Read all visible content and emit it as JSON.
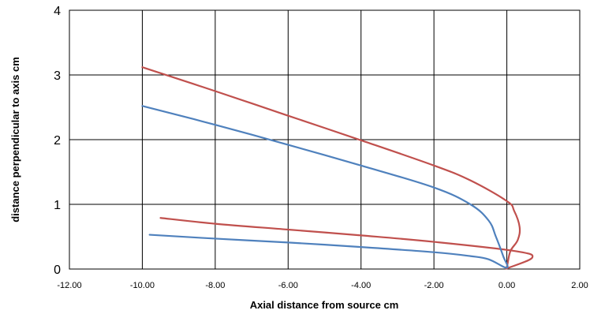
{
  "chart_data": {
    "type": "line",
    "title": "",
    "xlabel": "Axial distance from source cm",
    "ylabel": "distance perpendicular to axis cm",
    "xlim": [
      -12,
      2
    ],
    "ylim": [
      0,
      4
    ],
    "x_ticks": [
      "-12.00",
      "-10.00",
      "-8.00",
      "-6.00",
      "-4.00",
      "-2.00",
      "0.00",
      "2.00"
    ],
    "y_ticks": [
      "0",
      "1",
      "2",
      "3",
      "4"
    ],
    "grid": true,
    "legend": "none",
    "series": [
      {
        "color": "#c0504d",
        "points": [
          [
            -10,
            3.12
          ],
          [
            -8,
            2.75
          ],
          [
            -6,
            2.37
          ],
          [
            -4,
            1.99
          ],
          [
            -2,
            1.6
          ],
          [
            -1,
            1.37
          ],
          [
            0,
            1.05
          ],
          [
            0.2,
            0.9
          ],
          [
            0.35,
            0.65
          ],
          [
            0.3,
            0.45
          ],
          [
            0.1,
            0.28
          ],
          [
            0.02,
            0.08
          ],
          [
            0,
            0.02
          ],
          [
            0.05,
            0.02
          ],
          [
            0.7,
            0.18
          ],
          [
            0.2,
            0.28
          ],
          [
            -2,
            0.42
          ],
          [
            -4,
            0.52
          ],
          [
            -6,
            0.61
          ],
          [
            -8,
            0.7
          ],
          [
            -9.5,
            0.79
          ]
        ]
      },
      {
        "color": "#4f81bd",
        "points": [
          [
            -10,
            2.52
          ],
          [
            -8,
            2.23
          ],
          [
            -6,
            1.92
          ],
          [
            -4,
            1.6
          ],
          [
            -2,
            1.26
          ],
          [
            -1,
            1.0
          ],
          [
            -0.5,
            0.75
          ],
          [
            -0.3,
            0.5
          ],
          [
            -0.1,
            0.2
          ],
          [
            0,
            0.02
          ],
          [
            -0.5,
            0.15
          ],
          [
            -1,
            0.2
          ],
          [
            -2,
            0.26
          ],
          [
            -4,
            0.34
          ],
          [
            -6,
            0.41
          ],
          [
            -8,
            0.47
          ],
          [
            -9.8,
            0.53
          ]
        ]
      }
    ]
  }
}
